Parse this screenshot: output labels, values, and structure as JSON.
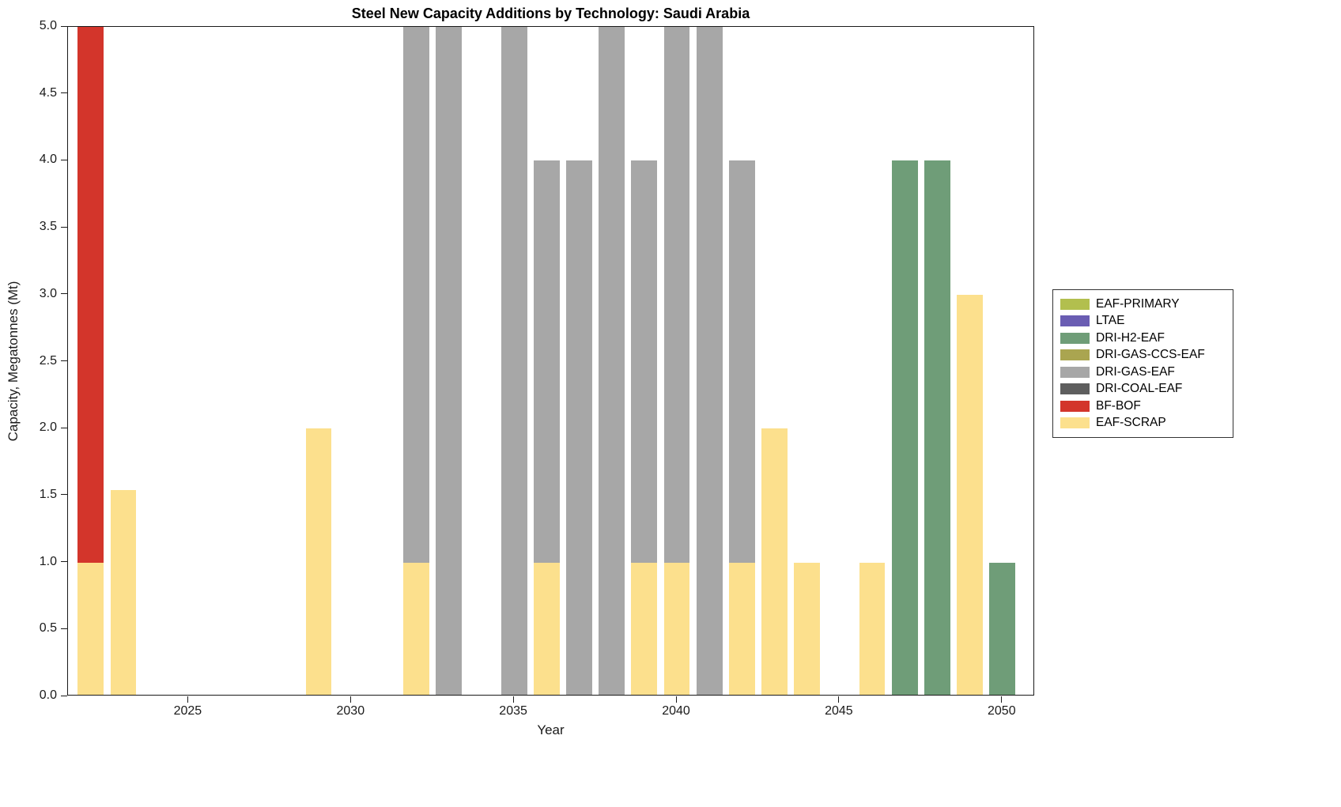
{
  "chart_data": {
    "type": "bar",
    "stacked": true,
    "title": "Steel New Capacity Additions by Technology: Saudi Arabia",
    "xlabel": "Year",
    "ylabel": "Capacity, Megatonnes (Mt)",
    "ylim": [
      0,
      5
    ],
    "xlim": [
      2021.3,
      2051.0
    ],
    "bar_width_years": 0.8,
    "grid": false,
    "legend_position": "outside-right",
    "yticks": [
      {
        "value": 0.0,
        "label": "0.0"
      },
      {
        "value": 0.5,
        "label": "0.5"
      },
      {
        "value": 1.0,
        "label": "1.0"
      },
      {
        "value": 1.5,
        "label": "1.5"
      },
      {
        "value": 2.0,
        "label": "2.0"
      },
      {
        "value": 2.5,
        "label": "2.5"
      },
      {
        "value": 3.0,
        "label": "3.0"
      },
      {
        "value": 3.5,
        "label": "3.5"
      },
      {
        "value": 4.0,
        "label": "4.0"
      },
      {
        "value": 4.5,
        "label": "4.5"
      },
      {
        "value": 5.0,
        "label": "5.0"
      }
    ],
    "xticks": [
      {
        "value": 2025,
        "label": "2025"
      },
      {
        "value": 2030,
        "label": "2030"
      },
      {
        "value": 2035,
        "label": "2035"
      },
      {
        "value": 2040,
        "label": "2040"
      },
      {
        "value": 2045,
        "label": "2045"
      },
      {
        "value": 2050,
        "label": "2050"
      }
    ],
    "legend": [
      {
        "label": "EAF-PRIMARY",
        "color": "#b2bf4e"
      },
      {
        "label": "LTAE",
        "color": "#6a5db3"
      },
      {
        "label": "DRI-H2-EAF",
        "color": "#6f9d78"
      },
      {
        "label": "DRI-GAS-CCS-EAF",
        "color": "#aaa550"
      },
      {
        "label": "DRI-GAS-EAF",
        "color": "#a7a7a7"
      },
      {
        "label": "DRI-COAL-EAF",
        "color": "#5e5e5e"
      },
      {
        "label": "BF-BOF",
        "color": "#d3352b"
      },
      {
        "label": "EAF-SCRAP",
        "color": "#fce08d"
      }
    ],
    "bars": [
      {
        "year": 2022,
        "clipped_at_ymax": true,
        "segments": [
          {
            "tech": "EAF-SCRAP",
            "value": 1.0
          },
          {
            "tech": "BF-BOF",
            "value": 4.0
          }
        ]
      },
      {
        "year": 2023,
        "clipped_at_ymax": false,
        "segments": [
          {
            "tech": "EAF-SCRAP",
            "value": 1.54
          }
        ]
      },
      {
        "year": 2029,
        "clipped_at_ymax": false,
        "segments": [
          {
            "tech": "EAF-SCRAP",
            "value": 2.0
          }
        ]
      },
      {
        "year": 2032,
        "clipped_at_ymax": true,
        "segments": [
          {
            "tech": "EAF-SCRAP",
            "value": 1.0
          },
          {
            "tech": "DRI-GAS-EAF",
            "value": 4.0
          }
        ]
      },
      {
        "year": 2033,
        "clipped_at_ymax": true,
        "segments": [
          {
            "tech": "DRI-GAS-EAF",
            "value": 5.0
          }
        ]
      },
      {
        "year": 2035,
        "clipped_at_ymax": true,
        "segments": [
          {
            "tech": "DRI-GAS-EAF",
            "value": 5.0
          }
        ]
      },
      {
        "year": 2036,
        "clipped_at_ymax": false,
        "segments": [
          {
            "tech": "EAF-SCRAP",
            "value": 1.0
          },
          {
            "tech": "DRI-GAS-EAF",
            "value": 3.0
          }
        ]
      },
      {
        "year": 2037,
        "clipped_at_ymax": false,
        "segments": [
          {
            "tech": "DRI-GAS-EAF",
            "value": 4.0
          }
        ]
      },
      {
        "year": 2038,
        "clipped_at_ymax": true,
        "segments": [
          {
            "tech": "DRI-GAS-EAF",
            "value": 5.0
          }
        ]
      },
      {
        "year": 2039,
        "clipped_at_ymax": false,
        "segments": [
          {
            "tech": "EAF-SCRAP",
            "value": 1.0
          },
          {
            "tech": "DRI-GAS-EAF",
            "value": 3.0
          }
        ]
      },
      {
        "year": 2040,
        "clipped_at_ymax": true,
        "segments": [
          {
            "tech": "EAF-SCRAP",
            "value": 1.0
          },
          {
            "tech": "DRI-GAS-EAF",
            "value": 4.0
          }
        ]
      },
      {
        "year": 2041,
        "clipped_at_ymax": true,
        "segments": [
          {
            "tech": "DRI-GAS-EAF",
            "value": 5.0
          }
        ]
      },
      {
        "year": 2042,
        "clipped_at_ymax": false,
        "segments": [
          {
            "tech": "EAF-SCRAP",
            "value": 1.0
          },
          {
            "tech": "DRI-GAS-EAF",
            "value": 3.0
          }
        ]
      },
      {
        "year": 2043,
        "clipped_at_ymax": false,
        "segments": [
          {
            "tech": "EAF-SCRAP",
            "value": 2.0
          }
        ]
      },
      {
        "year": 2044,
        "clipped_at_ymax": false,
        "segments": [
          {
            "tech": "EAF-SCRAP",
            "value": 1.0
          }
        ]
      },
      {
        "year": 2046,
        "clipped_at_ymax": false,
        "segments": [
          {
            "tech": "EAF-SCRAP",
            "value": 1.0
          }
        ]
      },
      {
        "year": 2047,
        "clipped_at_ymax": false,
        "segments": [
          {
            "tech": "DRI-H2-EAF",
            "value": 4.0
          }
        ]
      },
      {
        "year": 2048,
        "clipped_at_ymax": false,
        "segments": [
          {
            "tech": "DRI-H2-EAF",
            "value": 4.0
          }
        ]
      },
      {
        "year": 2049,
        "clipped_at_ymax": false,
        "segments": [
          {
            "tech": "EAF-SCRAP",
            "value": 3.0
          }
        ]
      },
      {
        "year": 2050,
        "clipped_at_ymax": false,
        "segments": [
          {
            "tech": "DRI-H2-EAF",
            "value": 1.0
          }
        ]
      }
    ]
  }
}
